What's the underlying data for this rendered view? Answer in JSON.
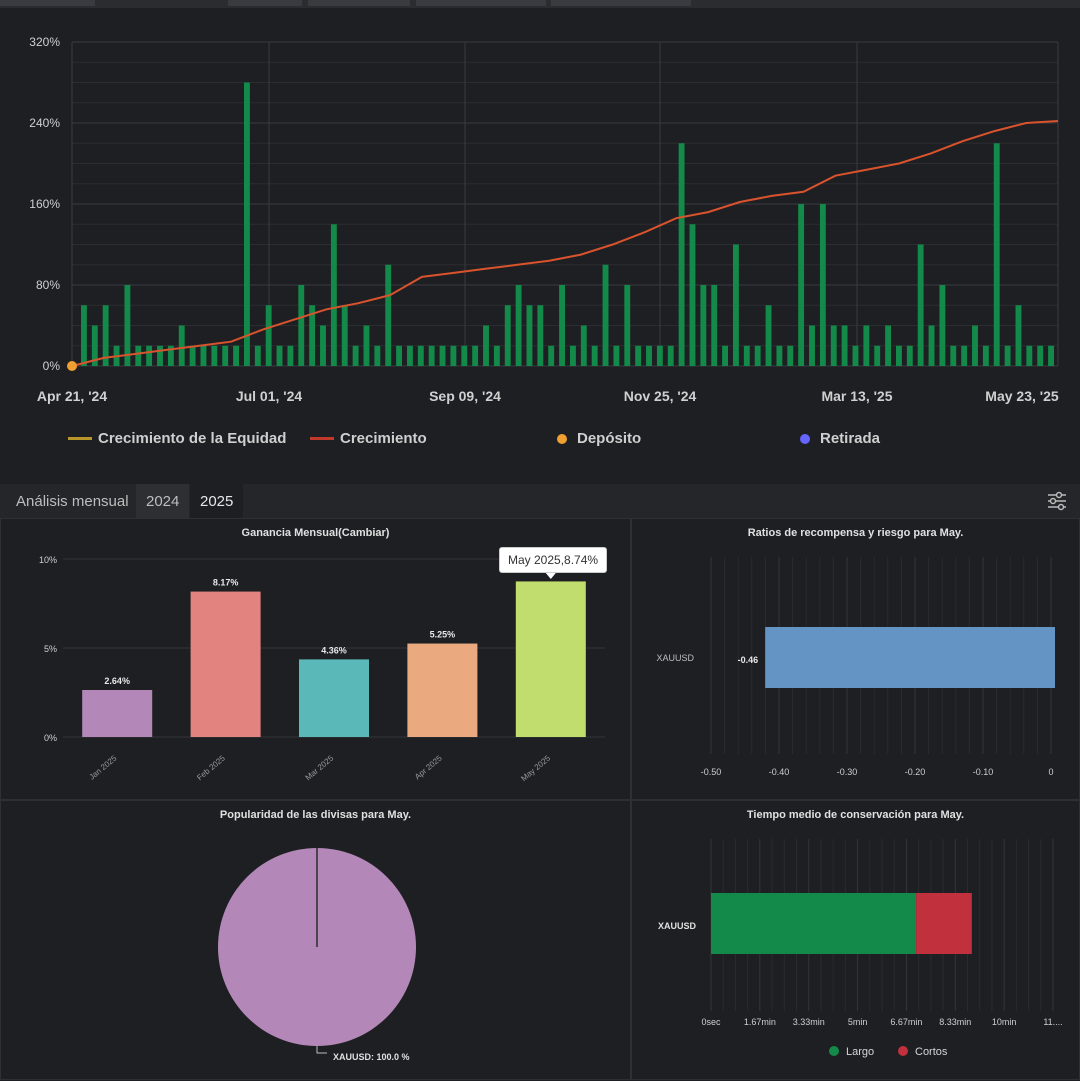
{
  "top_chart": {
    "y_ticks": [
      "320%",
      "240%",
      "160%",
      "80%",
      "0%"
    ],
    "x_ticks": [
      "Apr 21, '24",
      "Jul 01, '24",
      "Sep 09, '24",
      "Nov 25, '24",
      "Mar 13, '25",
      "May 23, '25"
    ],
    "legend": [
      {
        "label": "Crecimiento de la Equidad",
        "color": "#b8962a",
        "kind": "line"
      },
      {
        "label": "Crecimiento",
        "color": "#c0392b",
        "kind": "line"
      },
      {
        "label": "Depósito",
        "color": "#f0a030",
        "kind": "dot"
      },
      {
        "label": "Retirada",
        "color": "#6666ff",
        "kind": "dot"
      }
    ],
    "colors": {
      "bar": "#138a4a",
      "growth_line": "#d9532c",
      "grid": "#2e2f33"
    }
  },
  "tabs": {
    "label": "Análisis mensual",
    "items": [
      "2024",
      "2025"
    ],
    "active": "2025"
  },
  "monthly_chart": {
    "title": "Ganancia Mensual(Cambiar)",
    "tooltip": "May 2025,8.74%",
    "y_ticks": [
      "10%",
      "5%",
      "0%"
    ],
    "categories": [
      "Jan 2025",
      "Feb 2025",
      "Mar 2025",
      "Apr 2025",
      "May 2025"
    ],
    "values": [
      2.64,
      8.17,
      4.36,
      5.25,
      8.74
    ],
    "labels": [
      "2.64%",
      "8.17%",
      "4.36%",
      "5.25%",
      ""
    ],
    "colors": [
      "#b388b8",
      "#e3837f",
      "#5ab9b8",
      "#eaa97f",
      "#c1dd6d"
    ],
    "ylim": [
      0,
      10
    ]
  },
  "risk_chart": {
    "title": "Ratios de recompensa y riesgo para May.",
    "category": "XAUUSD",
    "value": -0.46,
    "value_label": "-0.46",
    "x_ticks": [
      "-0.50",
      "-0.40",
      "-0.30",
      "-0.20",
      "-0.10",
      "0"
    ],
    "color": "#6494c4"
  },
  "pie_chart": {
    "title": "Popularidad de las divisas para May.",
    "label": "XAUUSD: 100.0 %",
    "value": 100.0,
    "color": "#b388b8"
  },
  "hold_chart": {
    "title": "Tiempo medio de conservación para May.",
    "category": "XAUUSD",
    "x_ticks": [
      "0sec",
      "1.67min",
      "3.33min",
      "5min",
      "6.67min",
      "8.33min",
      "10min",
      "11...."
    ],
    "long_minutes": 7.0,
    "short_minutes": 1.9,
    "legend": [
      {
        "label": "Largo",
        "color": "#138a4a"
      },
      {
        "label": "Cortos",
        "color": "#c0303d"
      }
    ]
  },
  "chart_data": [
    {
      "type": "bar",
      "title": "Ganancia Mensual(Cambiar)",
      "categories": [
        "Jan 2025",
        "Feb 2025",
        "Mar 2025",
        "Apr 2025",
        "May 2025"
      ],
      "values": [
        2.64,
        8.17,
        4.36,
        5.25,
        8.74
      ],
      "ylim": [
        0,
        10
      ]
    },
    {
      "type": "bar",
      "title": "Ratios de recompensa y riesgo para May.",
      "categories": [
        "XAUUSD"
      ],
      "values": [
        -0.46
      ],
      "xlim": [
        -0.5,
        0
      ]
    },
    {
      "type": "pie",
      "title": "Popularidad de las divisas para May.",
      "categories": [
        "XAUUSD"
      ],
      "values": [
        100.0
      ]
    },
    {
      "type": "bar",
      "title": "Tiempo medio de conservación para May.",
      "categories": [
        "XAUUSD"
      ],
      "series": [
        {
          "name": "Largo",
          "values": [
            7.0
          ]
        },
        {
          "name": "Cortos",
          "values": [
            1.9
          ]
        }
      ]
    },
    {
      "type": "line",
      "x_ticks": [
        "Apr 21, '24",
        "Jul 01, '24",
        "Sep 09, '24",
        "Nov 25, '24",
        "Mar 13, '25",
        "May 23, '25"
      ],
      "ylim": [
        0,
        320
      ],
      "series": [
        {
          "name": "Crecimiento",
          "values": [
            0,
            8,
            12,
            16,
            20,
            24,
            36,
            46,
            56,
            62,
            70,
            88,
            92,
            96,
            100,
            104,
            110,
            120,
            132,
            146,
            152,
            162,
            168,
            172,
            188,
            194,
            200,
            210,
            222,
            232,
            240,
            242
          ]
        }
      ],
      "bars": [
        60,
        40,
        60,
        20,
        80,
        20,
        20,
        20,
        20,
        40,
        20,
        20,
        20,
        20,
        20,
        280,
        20,
        60,
        20,
        20,
        80,
        60,
        40,
        140,
        60,
        20,
        40,
        20,
        100,
        20,
        20,
        20,
        20,
        20,
        20,
        20,
        20,
        40,
        20,
        60,
        80,
        60,
        60,
        20,
        80,
        20,
        40,
        20,
        100,
        20,
        80,
        20,
        20,
        20,
        20,
        220,
        140,
        80,
        80,
        20,
        120,
        20,
        20,
        60,
        20,
        20,
        160,
        40,
        160,
        40,
        40,
        20,
        40,
        20,
        40,
        20,
        20,
        120,
        40,
        80,
        20,
        20,
        40,
        20,
        220,
        20,
        60,
        20,
        20,
        20
      ]
    }
  ]
}
